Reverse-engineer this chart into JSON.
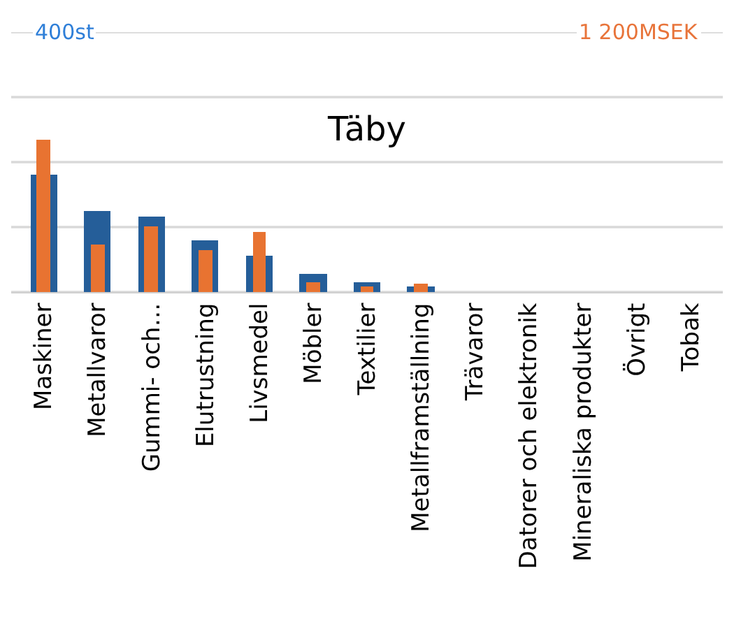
{
  "chart_data": {
    "type": "bar",
    "title": "Täby",
    "categories": [
      "Maskiner",
      "Metallvaror",
      "Gummi- och…",
      "Elutrustning",
      "Livsmedel",
      "Möbler",
      "Textilier",
      "Metallframställning",
      "Trävaror",
      "Datorer och elektronik",
      "Mineraliska produkter",
      "Övrigt",
      "Tobak"
    ],
    "series": [
      {
        "color": "#255e99",
        "values": [
          180,
          125,
          116,
          79,
          57,
          29,
          15,
          9,
          0,
          0,
          0,
          0,
          0
        ]
      },
      {
        "color": "#e87331",
        "axis": "y2",
        "values": [
          705,
          221,
          303,
          194,
          277,
          45,
          28,
          39,
          0,
          0,
          0,
          0,
          0
        ]
      }
    ],
    "ylim": [
      0,
      400
    ],
    "yticks": [
      {
        "value": 0,
        "label": null
      },
      {
        "value": 100,
        "label": null
      },
      {
        "value": 200,
        "label": null
      },
      {
        "value": 300,
        "label": null
      },
      {
        "value": 400,
        "label": "400st"
      }
    ],
    "y2lim": [
      0,
      1200
    ],
    "y2ticks": [
      {
        "value": 0,
        "label": null
      },
      {
        "value": 300,
        "label": null
      },
      {
        "value": 600,
        "label": null
      },
      {
        "value": 900,
        "label": null
      },
      {
        "value": 1200,
        "label": "1 200MSEK"
      }
    ],
    "grid": "y",
    "legend": false
  }
}
